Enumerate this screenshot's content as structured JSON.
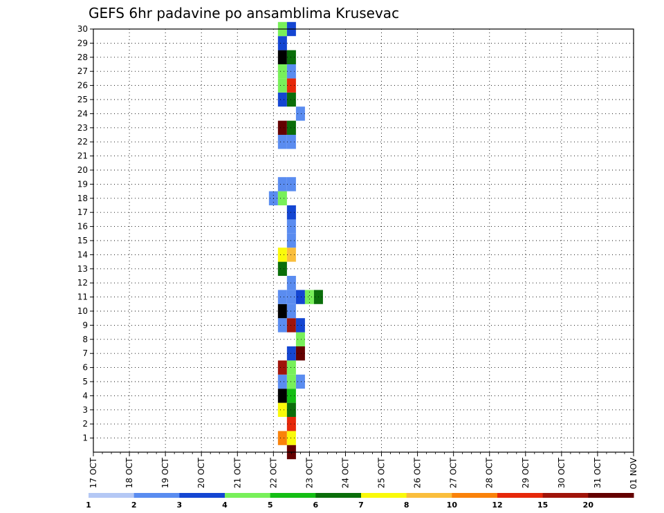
{
  "chart_data": {
    "type": "heatmap",
    "title": "GEFS 6hr padavine po ansamblima Krusevac",
    "xlabel": "",
    "ylabel": "",
    "x_ticks": [
      "17 OCT",
      "18 OCT",
      "19 OCT",
      "20 OCT",
      "21 OCT",
      "22 OCT",
      "23 OCT",
      "24 OCT",
      "25 OCT",
      "26 OCT",
      "27 OCT",
      "28 OCT",
      "29 OCT",
      "30 OCT",
      "31 OCT",
      "01 NOV"
    ],
    "x_step": "6hr",
    "y_ticks": [
      1,
      2,
      3,
      4,
      5,
      6,
      7,
      8,
      9,
      10,
      11,
      12,
      13,
      14,
      15,
      16,
      17,
      18,
      19,
      20,
      21,
      22,
      23,
      24,
      25,
      26,
      27,
      28,
      29,
      30
    ],
    "ylim": [
      0,
      30
    ],
    "grid": true,
    "colorbar": {
      "labels": [
        "1",
        "2",
        "3",
        "4",
        "5",
        "6",
        "7",
        "8",
        "10",
        "12",
        "15",
        "20"
      ],
      "colors": [
        "#b4c8f5",
        "#5a8cf0",
        "#1446d2",
        "#78f05a",
        "#14be14",
        "#0a6e0a",
        "#fafa0a",
        "#fabe3c",
        "#fa820a",
        "#e6280a",
        "#a0140a",
        "#640000"
      ]
    },
    "cells": [
      [
        "22 OCT 06Z",
        1,
        8
      ],
      [
        "22 OCT 12Z",
        1,
        6
      ],
      [
        "22 OCT 12Z",
        2,
        9
      ],
      [
        "22 OCT 06Z",
        3,
        6
      ],
      [
        "22 OCT 12Z",
        3,
        5
      ],
      [
        "22 OCT 06Z",
        4,
        12
      ],
      [
        "22 OCT 12Z",
        4,
        4
      ],
      [
        "22 OCT 06Z",
        5,
        1
      ],
      [
        "22 OCT 12Z",
        5,
        3
      ],
      [
        "22 OCT 18Z",
        5,
        1
      ],
      [
        "22 OCT 06Z",
        6,
        10
      ],
      [
        "22 OCT 12Z",
        6,
        3
      ],
      [
        "22 OCT 12Z",
        7,
        2
      ],
      [
        "22 OCT 18Z",
        7,
        11
      ],
      [
        "22 OCT 18Z",
        8,
        3
      ],
      [
        "22 OCT 06Z",
        9,
        1
      ],
      [
        "22 OCT 12Z",
        9,
        10
      ],
      [
        "22 OCT 18Z",
        9,
        2
      ],
      [
        "22 OCT 06Z",
        10,
        12
      ],
      [
        "22 OCT 12Z",
        10,
        1
      ],
      [
        "22 OCT 06Z",
        11,
        1
      ],
      [
        "22 OCT 12Z",
        11,
        1
      ],
      [
        "22 OCT 18Z",
        11,
        2
      ],
      [
        "23 OCT 00Z",
        11,
        3
      ],
      [
        "23 OCT 06Z",
        11,
        5
      ],
      [
        "22 OCT 12Z",
        12,
        1
      ],
      [
        "22 OCT 06Z",
        13,
        5
      ],
      [
        "22 OCT 06Z",
        14,
        6
      ],
      [
        "22 OCT 12Z",
        14,
        7
      ],
      [
        "22 OCT 12Z",
        15,
        1
      ],
      [
        "22 OCT 12Z",
        16,
        1
      ],
      [
        "22 OCT 12Z",
        17,
        2
      ],
      [
        "22 OCT 00Z",
        18,
        1
      ],
      [
        "22 OCT 06Z",
        18,
        3
      ],
      [
        "22 OCT 06Z",
        19,
        1
      ],
      [
        "22 OCT 12Z",
        19,
        1
      ],
      [
        "22 OCT 06Z",
        22,
        1
      ],
      [
        "22 OCT 12Z",
        22,
        1
      ],
      [
        "22 OCT 06Z",
        23,
        11
      ],
      [
        "22 OCT 12Z",
        23,
        5
      ],
      [
        "22 OCT 18Z",
        24,
        1
      ],
      [
        "22 OCT 06Z",
        25,
        2
      ],
      [
        "22 OCT 12Z",
        25,
        5
      ],
      [
        "22 OCT 06Z",
        26,
        3
      ],
      [
        "22 OCT 12Z",
        26,
        9
      ],
      [
        "22 OCT 06Z",
        27,
        3
      ],
      [
        "22 OCT 12Z",
        27,
        1
      ],
      [
        "22 OCT 06Z",
        28,
        12
      ],
      [
        "22 OCT 12Z",
        28,
        5
      ],
      [
        "22 OCT 06Z",
        29,
        2
      ],
      [
        "22 OCT 06Z",
        30,
        3
      ],
      [
        "22 OCT 12Z",
        30,
        2
      ],
      [
        "22 OCT 12Z",
        0,
        11
      ]
    ]
  }
}
